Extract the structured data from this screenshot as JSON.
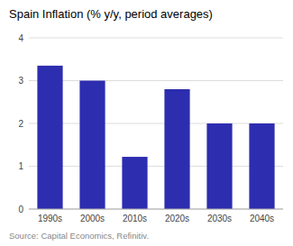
{
  "chart_data": {
    "type": "bar",
    "title": "Spain Inflation (% y/y, period averages)",
    "categories": [
      "1990s",
      "2000s",
      "2010s",
      "2020s",
      "2030s",
      "2040s"
    ],
    "values": [
      3.35,
      3.0,
      1.22,
      2.8,
      2.0,
      2.0
    ],
    "color": "#2d2db0",
    "ylim": [
      0,
      4
    ],
    "yticks": [
      0,
      1,
      2,
      3,
      4
    ],
    "grid": true,
    "annotations": [
      "Source: Capital Economics, Refinitiv."
    ]
  }
}
